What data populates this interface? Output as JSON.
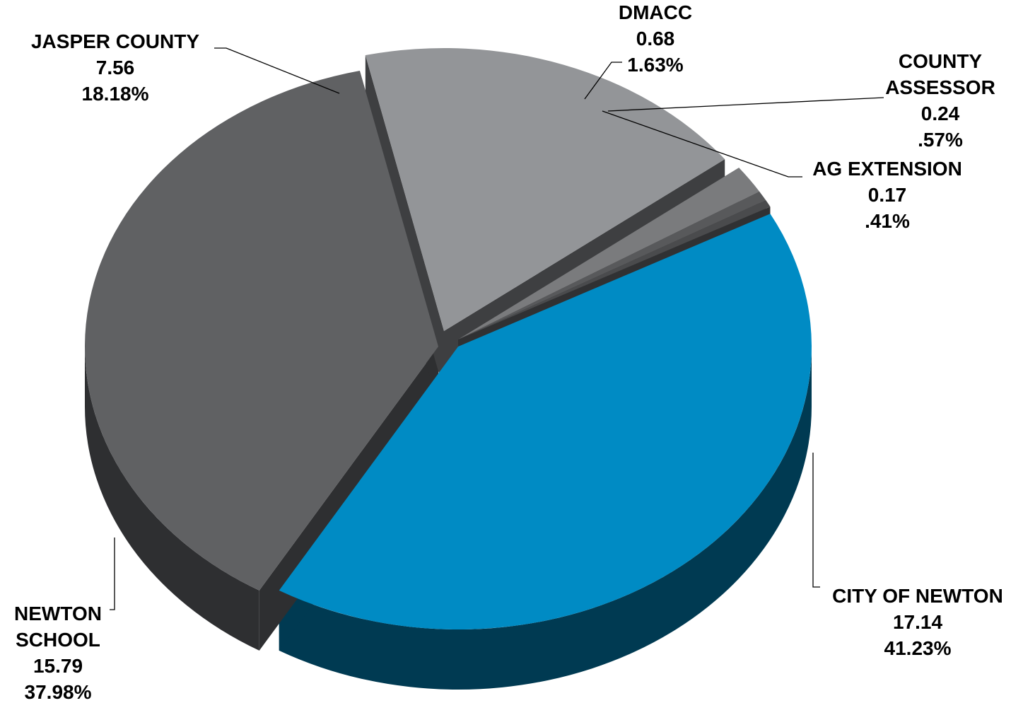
{
  "chart_data": {
    "type": "pie",
    "style": "3d-exploded",
    "slices": [
      {
        "label_lines": [
          "CITY OF NEWTON"
        ],
        "value": "17.14",
        "percent": "41.23%",
        "share": 41.23,
        "color": "#008bc4"
      },
      {
        "label_lines": [
          "NEWTON",
          "SCHOOL"
        ],
        "value": "15.79",
        "percent": "37.98%",
        "share": 37.98,
        "color": "#606163"
      },
      {
        "label_lines": [
          "JASPER COUNTY"
        ],
        "value": "7.56",
        "percent": "18.18%",
        "share": 18.18,
        "color": "#939598"
      },
      {
        "label_lines": [
          "DMACC"
        ],
        "value": "0.68",
        "percent": "1.63%",
        "share": 1.63,
        "color": "#7a7b7d"
      },
      {
        "label_lines": [
          "COUNTY",
          "ASSESSOR"
        ],
        "value": "0.24",
        "percent": ".57%",
        "share": 0.57,
        "color": "#58595b"
      },
      {
        "label_lines": [
          "AG EXTENSION"
        ],
        "value": "0.17",
        "percent": ".41%",
        "share": 0.41,
        "color": "#4a4b4d"
      }
    ]
  }
}
